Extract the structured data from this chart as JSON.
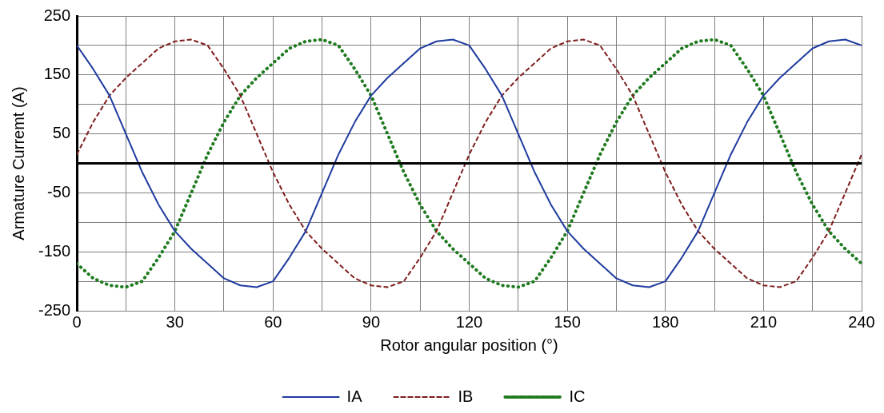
{
  "chart_data": {
    "type": "line",
    "xlabel": "Rotor angular position (°)",
    "ylabel": "Armature Curremt (A)",
    "x": [
      0,
      5,
      10,
      15,
      20,
      25,
      30,
      35,
      40,
      45,
      50,
      55,
      60,
      65,
      70,
      75,
      80,
      85,
      90,
      95,
      100,
      105,
      110,
      115,
      120,
      125,
      130,
      135,
      140,
      145,
      150,
      155,
      160,
      165,
      170,
      175,
      180,
      185,
      190,
      195,
      200,
      205,
      210,
      215,
      220,
      225,
      230,
      235,
      240
    ],
    "series": [
      {
        "name": "IA",
        "color": "#1f3b9e",
        "line_style": "solid",
        "values": [
          200,
          160,
          115,
          50,
          -15,
          -70,
          -115,
          -145,
          -170,
          -195,
          -207,
          -210,
          -200,
          -160,
          -115,
          -50,
          15,
          70,
          115,
          145,
          170,
          195,
          207,
          210,
          200,
          160,
          115,
          50,
          -15,
          -70,
          -115,
          -145,
          -170,
          -195,
          -207,
          -210,
          -200,
          -160,
          -115,
          -50,
          15,
          70,
          115,
          145,
          170,
          195,
          207,
          210,
          200
        ]
      },
      {
        "name": "IB",
        "color": "#7f1d1d",
        "line_style": "dashed",
        "values": [
          15,
          70,
          115,
          145,
          170,
          195,
          207,
          210,
          200,
          160,
          115,
          50,
          -15,
          -70,
          -115,
          -145,
          -170,
          -195,
          -207,
          -210,
          -200,
          -160,
          -115,
          -50,
          15,
          70,
          115,
          145,
          170,
          195,
          207,
          210,
          200,
          160,
          115,
          50,
          -15,
          -70,
          -115,
          -145,
          -170,
          -195,
          -207,
          -210,
          -200,
          -160,
          -115,
          -50,
          15
        ]
      },
      {
        "name": "IC",
        "color": "#1e7a1e",
        "line_style": "dotted",
        "values": [
          -170,
          -195,
          -207,
          -210,
          -200,
          -160,
          -115,
          -50,
          15,
          70,
          115,
          145,
          170,
          195,
          207,
          210,
          200,
          160,
          115,
          50,
          -15,
          -70,
          -115,
          -145,
          -170,
          -195,
          -207,
          -210,
          -200,
          -160,
          -115,
          -50,
          15,
          70,
          115,
          145,
          170,
          195,
          207,
          210,
          200,
          160,
          115,
          50,
          -15,
          -70,
          -115,
          -145,
          -170
        ]
      }
    ],
    "xlim": [
      0,
      240
    ],
    "xticks": [
      0,
      {
        "value": 15,
        "label": null
      },
      30,
      {
        "value": 45,
        "label": null
      },
      60,
      {
        "value": 75,
        "label": null
      },
      90,
      {
        "value": 105,
        "label": null
      },
      120,
      {
        "value": 135,
        "label": null
      },
      150,
      {
        "value": 165,
        "label": null
      },
      180,
      {
        "value": 195,
        "label": null
      },
      210,
      {
        "value": 225,
        "label": null
      },
      240
    ],
    "ylim": [
      -250,
      250
    ],
    "yticks": [
      -250,
      {
        "value": -200,
        "label": null
      },
      -150,
      {
        "value": -100,
        "label": null
      },
      -50,
      {
        "value": 0,
        "label": null
      },
      50,
      {
        "value": 100,
        "label": null
      },
      150,
      {
        "value": 200,
        "label": null
      },
      250
    ],
    "ref_lines": [
      {
        "axis": "y",
        "value": 0,
        "color": "#000000"
      }
    ],
    "grid": true,
    "legend": "bottom",
    "marker": "none"
  }
}
